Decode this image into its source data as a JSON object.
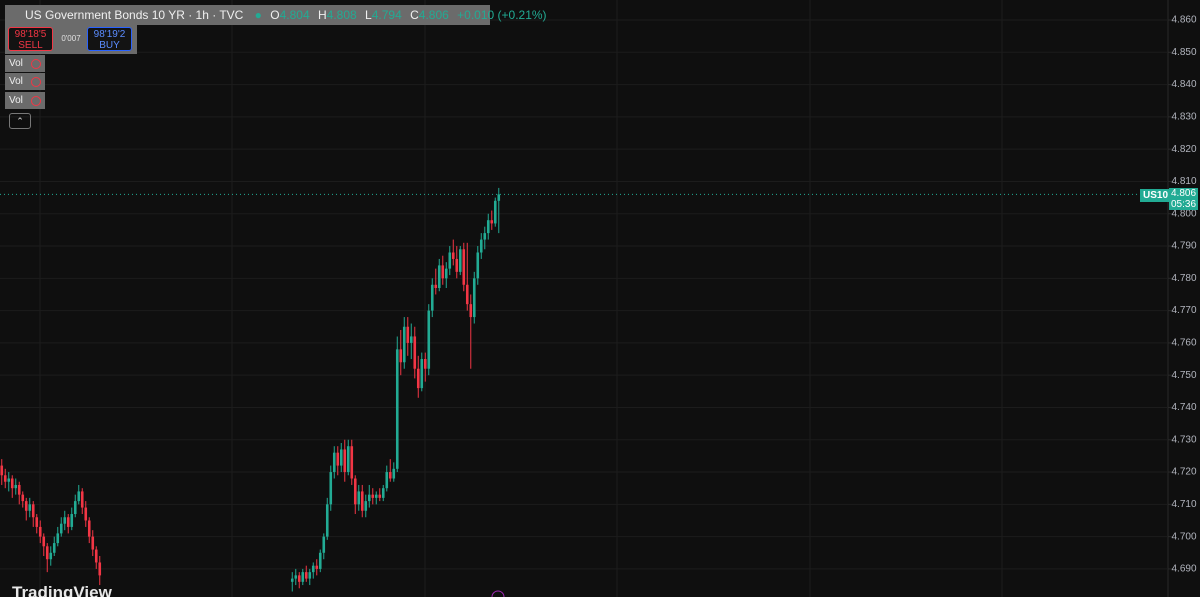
{
  "header": {
    "title": "US Government Bonds 10 YR · 1h · TVC",
    "open_label": "O",
    "open": 4.804,
    "high_label": "H",
    "high": 4.808,
    "low_label": "L",
    "low": 4.794,
    "close_label": "C",
    "close": 4.806,
    "change": "+0.010 (+0.21%)"
  },
  "trade": {
    "sell_price": "98'18'5",
    "sell": "SELL",
    "spread": "0'007",
    "buy_price": "98'19'2",
    "buy": "BUY"
  },
  "indicators": [
    "Vol",
    "Vol",
    "Vol"
  ],
  "price_tag": {
    "symbol": "US10",
    "value": 4.806,
    "countdown": "05:36"
  },
  "logo": "TradingView",
  "chart_data": {
    "type": "candlestick",
    "x": [
      0,
      1,
      2,
      3,
      4,
      5,
      6,
      7,
      8,
      9,
      10,
      11,
      12,
      13,
      14,
      15,
      16,
      17,
      18,
      19,
      20,
      21,
      22,
      23,
      24,
      25,
      26,
      27,
      28,
      83,
      84,
      85,
      86,
      87,
      88,
      89,
      90,
      91,
      92,
      93,
      94,
      95,
      96,
      97,
      98,
      99,
      100,
      101,
      102,
      103,
      104,
      105,
      106,
      107,
      108,
      109,
      110,
      111,
      112,
      113,
      114,
      115,
      116,
      117,
      118,
      119,
      120,
      121,
      122,
      123,
      124,
      125,
      126,
      127,
      128,
      129,
      130,
      131,
      132,
      133,
      134,
      135,
      136,
      137,
      138,
      139,
      140,
      141,
      142
    ],
    "open": [
      4.722,
      4.719,
      4.717,
      4.718,
      4.715,
      4.716,
      4.713,
      4.711,
      4.708,
      4.71,
      4.706,
      4.703,
      4.7,
      4.697,
      4.693,
      4.695,
      4.698,
      4.701,
      4.704,
      4.706,
      4.703,
      4.707,
      4.711,
      4.714,
      4.709,
      4.705,
      4.7,
      4.696,
      4.692,
      4.686,
      4.687,
      4.688,
      4.686,
      4.689,
      4.687,
      4.689,
      4.691,
      4.69,
      4.695,
      4.7,
      4.71,
      4.72,
      4.726,
      4.722,
      4.727,
      4.72,
      4.728,
      4.718,
      4.71,
      4.714,
      4.708,
      4.711,
      4.713,
      4.712,
      4.713,
      4.712,
      4.715,
      4.72,
      4.718,
      4.721,
      4.758,
      4.754,
      4.765,
      4.76,
      4.762,
      4.752,
      4.746,
      4.755,
      4.752,
      4.77,
      4.778,
      4.777,
      4.784,
      4.78,
      4.783,
      4.788,
      4.786,
      4.782,
      4.789,
      4.778,
      4.772,
      4.768,
      4.78,
      4.788,
      4.792,
      4.794,
      4.798,
      4.797,
      4.804
    ],
    "high": [
      4.724,
      4.721,
      4.72,
      4.719,
      4.718,
      4.717,
      4.714,
      4.712,
      4.712,
      4.711,
      4.707,
      4.705,
      4.701,
      4.698,
      4.697,
      4.7,
      4.703,
      4.706,
      4.708,
      4.707,
      4.709,
      4.713,
      4.716,
      4.715,
      4.711,
      4.706,
      4.702,
      4.697,
      4.694,
      4.689,
      4.69,
      4.689,
      4.69,
      4.691,
      4.69,
      4.692,
      4.693,
      4.696,
      4.701,
      4.712,
      4.722,
      4.728,
      4.728,
      4.729,
      4.73,
      4.73,
      4.73,
      4.719,
      4.716,
      4.716,
      4.713,
      4.716,
      4.715,
      4.714,
      4.715,
      4.716,
      4.722,
      4.724,
      4.723,
      4.762,
      4.764,
      4.768,
      4.768,
      4.766,
      4.765,
      4.756,
      4.757,
      4.757,
      4.772,
      4.78,
      4.783,
      4.786,
      4.787,
      4.785,
      4.79,
      4.792,
      4.79,
      4.79,
      4.791,
      4.791,
      4.775,
      4.782,
      4.79,
      4.794,
      4.796,
      4.8,
      4.801,
      4.805,
      4.808
    ],
    "low": [
      4.716,
      4.715,
      4.714,
      4.712,
      4.713,
      4.71,
      4.709,
      4.705,
      4.706,
      4.703,
      4.701,
      4.698,
      4.694,
      4.689,
      4.691,
      4.694,
      4.697,
      4.7,
      4.702,
      4.701,
      4.702,
      4.706,
      4.71,
      4.707,
      4.703,
      4.698,
      4.694,
      4.69,
      4.685,
      4.683,
      4.685,
      4.684,
      4.685,
      4.686,
      4.685,
      4.687,
      4.688,
      4.689,
      4.693,
      4.699,
      4.708,
      4.718,
      4.719,
      4.72,
      4.717,
      4.719,
      4.716,
      4.707,
      4.708,
      4.706,
      4.706,
      4.709,
      4.71,
      4.71,
      4.711,
      4.711,
      4.714,
      4.717,
      4.717,
      4.72,
      4.75,
      4.752,
      4.756,
      4.755,
      4.749,
      4.743,
      4.745,
      4.748,
      4.75,
      4.768,
      4.775,
      4.776,
      4.778,
      4.777,
      4.781,
      4.784,
      4.78,
      4.781,
      4.776,
      4.77,
      4.752,
      4.766,
      4.778,
      4.786,
      4.789,
      4.792,
      4.795,
      4.796,
      4.794
    ],
    "close": [
      4.719,
      4.717,
      4.718,
      4.715,
      4.716,
      4.713,
      4.711,
      4.708,
      4.71,
      4.706,
      4.703,
      4.7,
      4.697,
      4.693,
      4.695,
      4.698,
      4.701,
      4.704,
      4.706,
      4.703,
      4.707,
      4.711,
      4.714,
      4.709,
      4.705,
      4.7,
      4.696,
      4.692,
      4.688,
      4.687,
      4.688,
      4.686,
      4.689,
      4.687,
      4.689,
      4.691,
      4.69,
      4.695,
      4.7,
      4.71,
      4.72,
      4.726,
      4.722,
      4.727,
      4.72,
      4.728,
      4.718,
      4.71,
      4.714,
      4.708,
      4.711,
      4.713,
      4.712,
      4.713,
      4.712,
      4.715,
      4.72,
      4.718,
      4.721,
      4.758,
      4.754,
      4.765,
      4.76,
      4.762,
      4.752,
      4.746,
      4.755,
      4.752,
      4.77,
      4.778,
      4.777,
      4.784,
      4.78,
      4.783,
      4.788,
      4.786,
      4.782,
      4.789,
      4.778,
      4.772,
      4.768,
      4.78,
      4.788,
      4.792,
      4.794,
      4.798,
      4.797,
      4.804,
      4.806
    ],
    "xlim": [
      -0.5,
      333.2
    ],
    "ylim": [
      4.6813,
      4.8662
    ],
    "yticks": [
      {
        "value": 4.69,
        "label": "4.690"
      },
      {
        "value": 4.7,
        "label": "4.700"
      },
      {
        "value": 4.71,
        "label": "4.710"
      },
      {
        "value": 4.72,
        "label": "4.720"
      },
      {
        "value": 4.73,
        "label": "4.730"
      },
      {
        "value": 4.74,
        "label": "4.740"
      },
      {
        "value": 4.75,
        "label": "4.750"
      },
      {
        "value": 4.76,
        "label": "4.760"
      },
      {
        "value": 4.77,
        "label": "4.770"
      },
      {
        "value": 4.78,
        "label": "4.780"
      },
      {
        "value": 4.79,
        "label": "4.790"
      },
      {
        "value": 4.8,
        "label": "4.800"
      },
      {
        "value": 4.81,
        "label": "4.810"
      },
      {
        "value": 4.82,
        "label": "4.820"
      },
      {
        "value": 4.83,
        "label": "4.830"
      },
      {
        "value": 4.84,
        "label": "4.840"
      },
      {
        "value": 4.85,
        "label": "4.850"
      },
      {
        "value": 4.86,
        "label": "4.860"
      }
    ],
    "grid": true,
    "up_color": "#22ab94",
    "down_color": "#f23645"
  }
}
